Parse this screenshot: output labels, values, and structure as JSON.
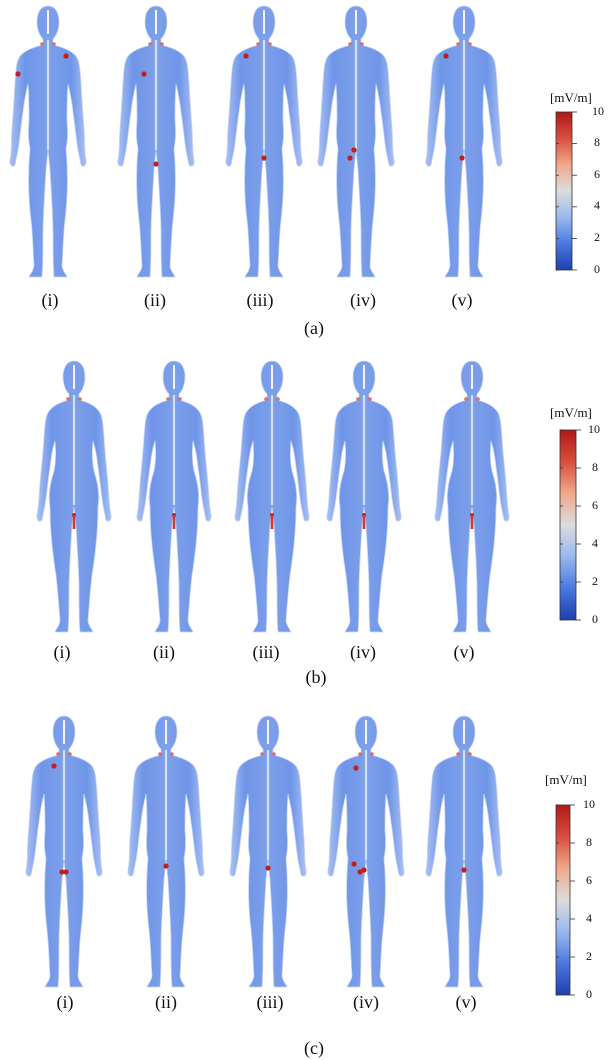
{
  "figure": {
    "panels": [
      {
        "panel_label": "(a)",
        "sex": "male",
        "subfigure_labels": [
          "(i)",
          "(ii)",
          "(iii)",
          "(iv)",
          "(v)"
        ],
        "colorbar": {
          "unit": "[mV/m]",
          "ticks": [
            "10",
            "8",
            "6",
            "4",
            "2",
            "0"
          ]
        }
      },
      {
        "panel_label": "(b)",
        "sex": "female",
        "subfigure_labels": [
          "(i)",
          "(ii)",
          "(iii)",
          "(iv)",
          "(v)"
        ],
        "colorbar": {
          "unit": "[mV/m]",
          "ticks": [
            "10",
            "8",
            "6",
            "4",
            "2",
            "0"
          ]
        }
      },
      {
        "panel_label": "(c)",
        "sex": "male",
        "subfigure_labels": [
          "(i)",
          "(ii)",
          "(iii)",
          "(iv)",
          "(v)"
        ],
        "colorbar": {
          "unit": "[mV/m]",
          "ticks": [
            "10",
            "8",
            "6",
            "4",
            "2",
            "0"
          ]
        }
      }
    ],
    "colorscale": [
      "#1f3fb0",
      "#4a78e0",
      "#98b8ee",
      "#dcdcdc",
      "#f0a88a",
      "#d8503e",
      "#b01818"
    ]
  }
}
